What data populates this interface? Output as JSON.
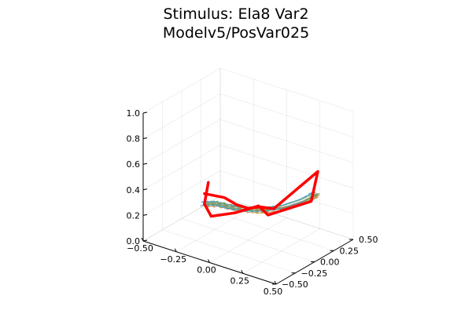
{
  "chart_data": {
    "type": "line",
    "projection": "3d",
    "title": "Stimulus: Ela8 Var2",
    "subtitle": "Modelv5/PosVar025",
    "xlabel": "",
    "ylabel": "",
    "zlabel": "",
    "xlim": [
      -0.5,
      0.5
    ],
    "ylim": [
      -0.5,
      0.5
    ],
    "zlim": [
      0.0,
      1.0
    ],
    "x_ticks": [
      "−0.50",
      "−0.25",
      "0.00",
      "0.25",
      "0.50"
    ],
    "y_ticks": [
      "−0.50",
      "−0.25",
      "0.00",
      "0.25",
      "0.50"
    ],
    "z_ticks": [
      "0.0",
      "0.2",
      "0.4",
      "0.6",
      "0.8",
      "1.0"
    ],
    "grid": true,
    "legend": "none",
    "colors": {
      "stimulus": "#ff0000",
      "model_traces": [
        "#3aa7a8",
        "#5a9f5e",
        "#c68a3e",
        "#8b8bc6",
        "#4b9bd0",
        "#b0884a",
        "#2eb0a0",
        "#7aa43c",
        "#4aa0b8",
        "#9a8f5a"
      ]
    },
    "stimulus_path": [
      [
        -0.3,
        -0.05,
        0.28
      ],
      [
        -0.15,
        -0.05,
        0.3
      ],
      [
        -0.08,
        -0.02,
        0.26
      ],
      [
        0.0,
        0.0,
        0.25
      ],
      [
        0.08,
        0.02,
        0.28
      ],
      [
        0.18,
        0.02,
        0.3
      ],
      [
        0.35,
        0.3,
        0.55
      ],
      [
        0.3,
        0.3,
        0.3
      ],
      [
        0.12,
        0.05,
        0.22
      ],
      [
        0.02,
        0.1,
        0.24
      ],
      [
        -0.1,
        0.0,
        0.18
      ],
      [
        -0.25,
        -0.05,
        0.12
      ],
      [
        -0.3,
        -0.05,
        0.2
      ],
      [
        -0.3,
        0.0,
        0.35
      ]
    ],
    "model_traces": [
      {
        "offset": [
          0.01,
          0.0,
          0.0
        ],
        "wiggle": 0.012,
        "phase": 0.0
      },
      {
        "offset": [
          -0.01,
          0.01,
          0.01
        ],
        "wiggle": 0.014,
        "phase": 0.6
      },
      {
        "offset": [
          0.02,
          -0.01,
          -0.01
        ],
        "wiggle": 0.016,
        "phase": 1.2
      },
      {
        "offset": [
          0.0,
          0.02,
          0.0
        ],
        "wiggle": 0.012,
        "phase": 1.8
      },
      {
        "offset": [
          -0.02,
          0.0,
          0.01
        ],
        "wiggle": 0.018,
        "phase": 2.4
      },
      {
        "offset": [
          0.01,
          0.02,
          -0.01
        ],
        "wiggle": 0.013,
        "phase": 3.0
      },
      {
        "offset": [
          0.0,
          -0.02,
          0.0
        ],
        "wiggle": 0.015,
        "phase": 3.6
      },
      {
        "offset": [
          0.02,
          0.01,
          0.01
        ],
        "wiggle": 0.017,
        "phase": 4.2
      },
      {
        "offset": [
          -0.01,
          -0.01,
          -0.01
        ],
        "wiggle": 0.014,
        "phase": 4.8
      },
      {
        "offset": [
          0.01,
          -0.02,
          0.01
        ],
        "wiggle": 0.016,
        "phase": 5.4
      }
    ],
    "model_mean_path": [
      [
        -0.3,
        -0.05,
        0.2
      ],
      [
        -0.22,
        -0.03,
        0.22
      ],
      [
        -0.12,
        -0.01,
        0.22
      ],
      [
        -0.02,
        0.01,
        0.23
      ],
      [
        0.05,
        0.03,
        0.24
      ],
      [
        0.12,
        0.06,
        0.26
      ],
      [
        0.2,
        0.12,
        0.28
      ],
      [
        0.28,
        0.22,
        0.32
      ],
      [
        0.33,
        0.3,
        0.36
      ],
      [
        0.3,
        0.32,
        0.34
      ]
    ]
  }
}
